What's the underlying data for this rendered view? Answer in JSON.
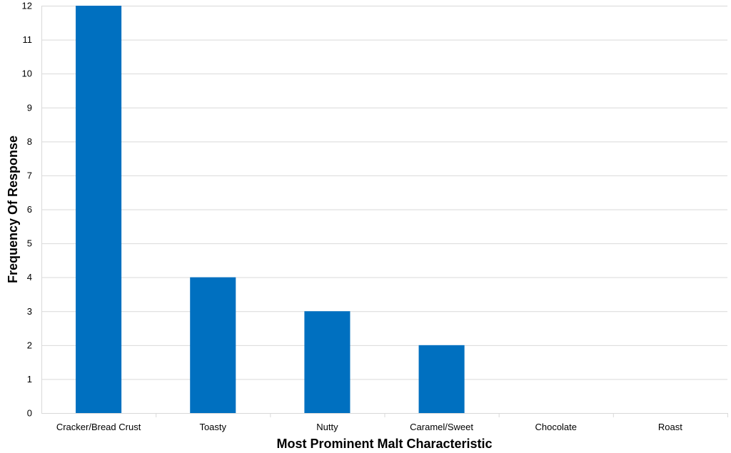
{
  "chart_data": {
    "type": "bar",
    "title": "",
    "xlabel": "Most Prominent Malt Characteristic",
    "ylabel": "Frequency Of Response",
    "categories": [
      "Cracker/Bread Crust",
      "Toasty",
      "Nutty",
      "Caramel/Sweet",
      "Chocolate",
      "Roast"
    ],
    "values": [
      12,
      4,
      3,
      2,
      0,
      0
    ],
    "ylim": [
      0,
      12
    ],
    "yticks": [
      "0",
      "1",
      "2",
      "3",
      "4",
      "5",
      "6",
      "7",
      "8",
      "9",
      "10",
      "11",
      "12"
    ],
    "grid": true,
    "legend": "none",
    "bar_color": "#0070c0"
  }
}
